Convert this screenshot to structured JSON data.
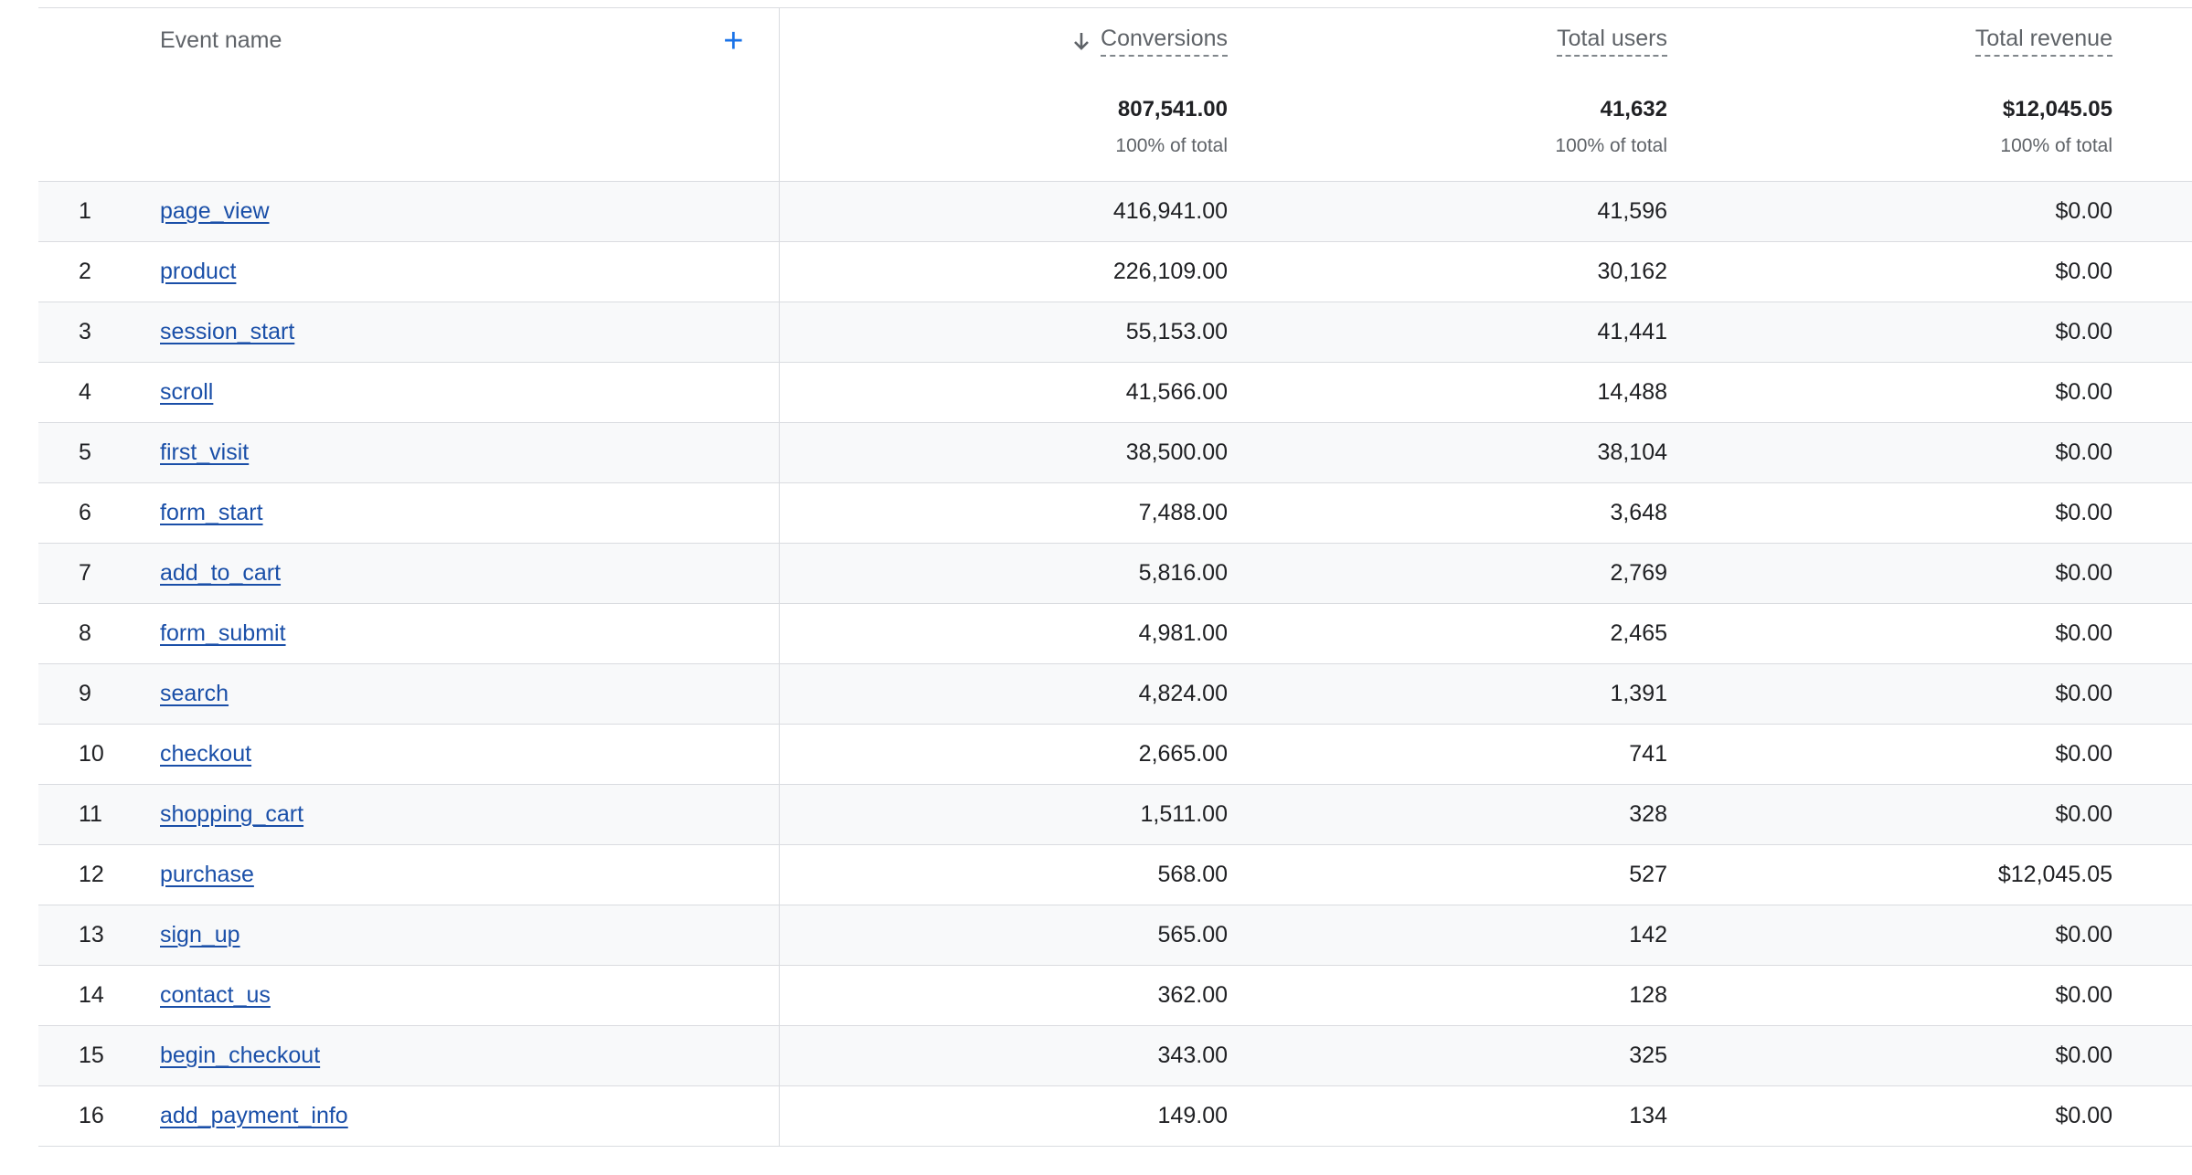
{
  "header": {
    "event_name": "Event name",
    "add_icon": "plus-icon",
    "sort_icon": "arrow-down-icon",
    "conversions": "Conversions",
    "total_users": "Total users",
    "total_revenue": "Total revenue"
  },
  "totals": {
    "conversions": "807,541.00",
    "conversions_pct": "100% of total",
    "users": "41,632",
    "users_pct": "100% of total",
    "revenue": "$12,045.05",
    "revenue_pct": "100% of total"
  },
  "rows": [
    {
      "rank": "1",
      "event": "page_view",
      "conversions": "416,941.00",
      "users": "41,596",
      "revenue": "$0.00"
    },
    {
      "rank": "2",
      "event": "product",
      "conversions": "226,109.00",
      "users": "30,162",
      "revenue": "$0.00"
    },
    {
      "rank": "3",
      "event": "session_start",
      "conversions": "55,153.00",
      "users": "41,441",
      "revenue": "$0.00"
    },
    {
      "rank": "4",
      "event": "scroll",
      "conversions": "41,566.00",
      "users": "14,488",
      "revenue": "$0.00"
    },
    {
      "rank": "5",
      "event": "first_visit",
      "conversions": "38,500.00",
      "users": "38,104",
      "revenue": "$0.00"
    },
    {
      "rank": "6",
      "event": "form_start",
      "conversions": "7,488.00",
      "users": "3,648",
      "revenue": "$0.00"
    },
    {
      "rank": "7",
      "event": "add_to_cart",
      "conversions": "5,816.00",
      "users": "2,769",
      "revenue": "$0.00"
    },
    {
      "rank": "8",
      "event": "form_submit",
      "conversions": "4,981.00",
      "users": "2,465",
      "revenue": "$0.00"
    },
    {
      "rank": "9",
      "event": "search",
      "conversions": "4,824.00",
      "users": "1,391",
      "revenue": "$0.00"
    },
    {
      "rank": "10",
      "event": "checkout",
      "conversions": "2,665.00",
      "users": "741",
      "revenue": "$0.00"
    },
    {
      "rank": "11",
      "event": "shopping_cart",
      "conversions": "1,511.00",
      "users": "328",
      "revenue": "$0.00"
    },
    {
      "rank": "12",
      "event": "purchase",
      "conversions": "568.00",
      "users": "527",
      "revenue": "$12,045.05"
    },
    {
      "rank": "13",
      "event": "sign_up",
      "conversions": "565.00",
      "users": "142",
      "revenue": "$0.00"
    },
    {
      "rank": "14",
      "event": "contact_us",
      "conversions": "362.00",
      "users": "128",
      "revenue": "$0.00"
    },
    {
      "rank": "15",
      "event": "begin_checkout",
      "conversions": "343.00",
      "users": "325",
      "revenue": "$0.00"
    },
    {
      "rank": "16",
      "event": "add_payment_info",
      "conversions": "149.00",
      "users": "134",
      "revenue": "$0.00"
    }
  ],
  "colors": {
    "link": "#1a4fa8",
    "accent": "#1a73e8",
    "row_alt_bg": "#f8f9fa",
    "border": "#dadce0"
  }
}
